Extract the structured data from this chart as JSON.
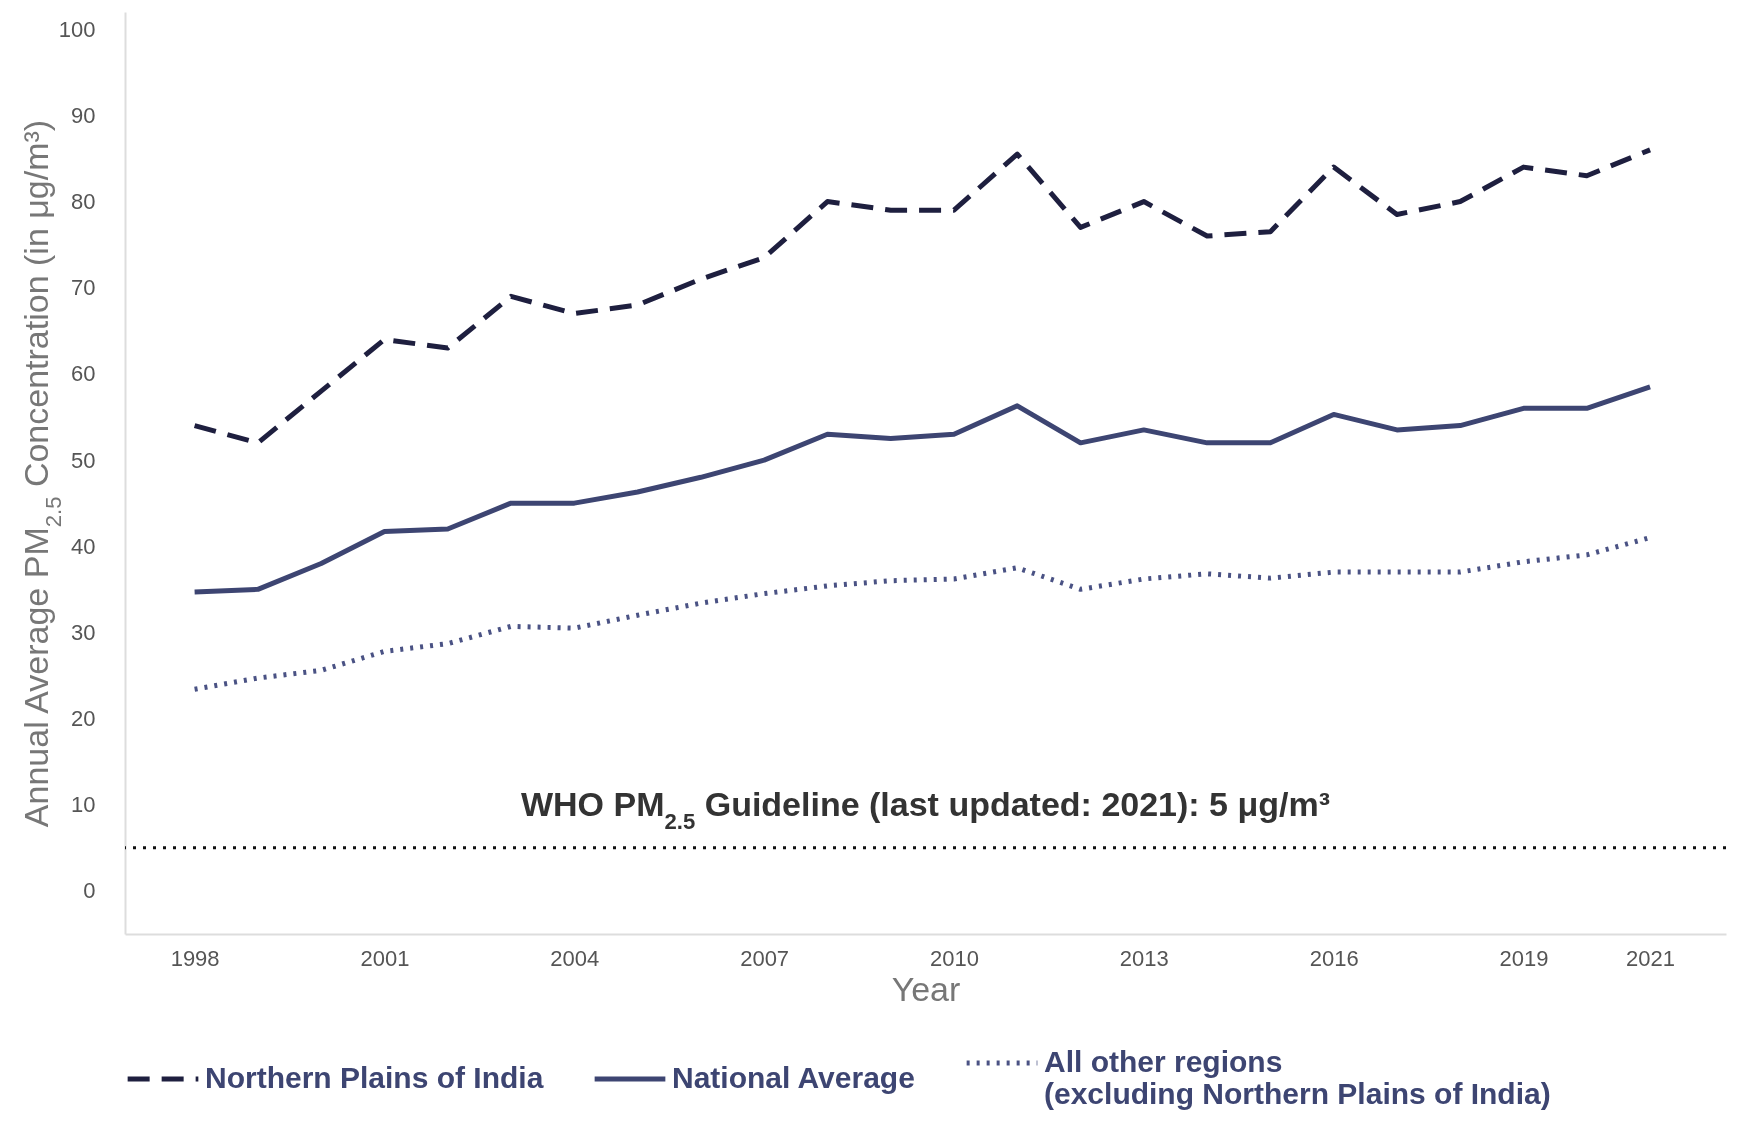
{
  "chart_data": {
    "type": "line",
    "xlabel": "Year",
    "ylabel": "Annual Average PM$_{2.5}$ Concentration (in μg/m³)",
    "x": [
      1998,
      1999,
      2000,
      2001,
      2002,
      2003,
      2004,
      2005,
      2006,
      2007,
      2008,
      2009,
      2010,
      2011,
      2012,
      2013,
      2014,
      2015,
      2016,
      2017,
      2018,
      2019,
      2020,
      2021
    ],
    "series": [
      {
        "name": "Northern Plains of India",
        "color": "#1e1f3f",
        "line_style": "dashed",
        "values": [
          54,
          52,
          58,
          64,
          63,
          69,
          67,
          68,
          71,
          73.5,
          80,
          79,
          79,
          85.5,
          77,
          80,
          76,
          76.5,
          84,
          78.5,
          80,
          84,
          83,
          86
        ]
      },
      {
        "name": "National Average",
        "color": "#3d4572",
        "line_style": "solid",
        "values": [
          34.7,
          35,
          38,
          41.7,
          42,
          45,
          45,
          46.3,
          48,
          50,
          53,
          52.5,
          53,
          56.3,
          52,
          53.5,
          52,
          52,
          55.3,
          53.5,
          54,
          56,
          56,
          58.5
        ]
      },
      {
        "name": "All other regions\n(excluding Northern Plains of India)",
        "color": "#4a5284",
        "line_style": "dotted",
        "values": [
          23.4,
          24.7,
          25.6,
          27.8,
          28.7,
          30.7,
          30.5,
          32,
          33.4,
          34.5,
          35.4,
          36,
          36.2,
          37.5,
          35,
          36.2,
          36.8,
          36.3,
          37,
          37,
          37,
          38.2,
          39,
          41
        ]
      }
    ],
    "xlim": [
      1996.9,
      2022.2
    ],
    "xticks": [
      1998,
      2001,
      2004,
      2007,
      2010,
      2013,
      2016,
      2019,
      2021
    ],
    "ylim": [
      -5,
      102
    ],
    "yticks": [
      0,
      10,
      20,
      30,
      40,
      50,
      60,
      70,
      80,
      90,
      100
    ],
    "ref_lines": [
      {
        "axis": "y",
        "value": 5,
        "label": "WHO PM$_{2.5}$ Guideline (last updated: 2021): 5 μg/m³",
        "color": "#111111",
        "line_style": "dotted"
      }
    ],
    "legend": "bottom"
  }
}
